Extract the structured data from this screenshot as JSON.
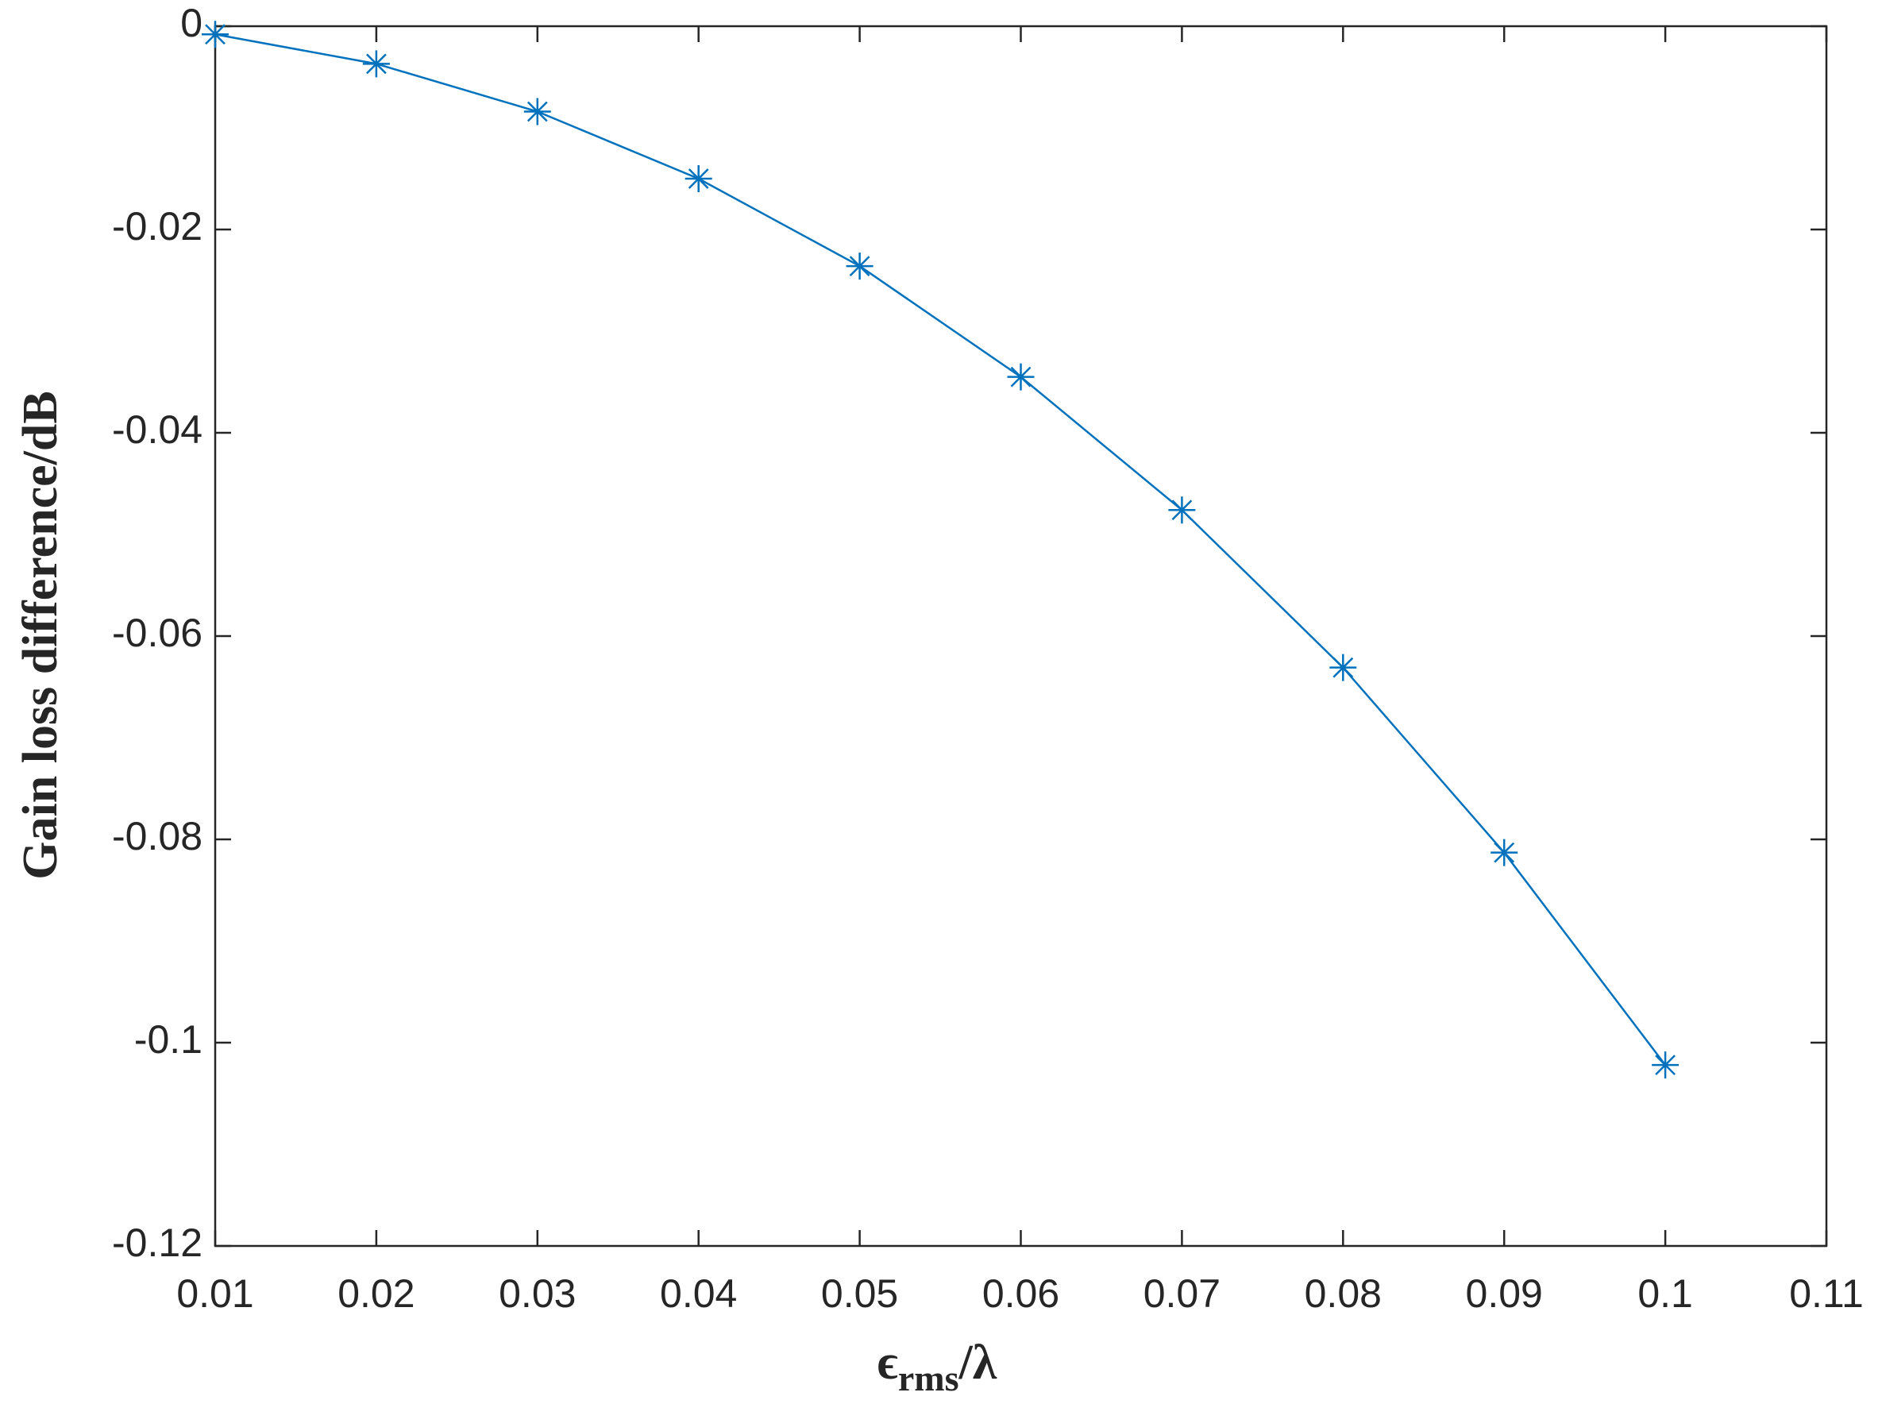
{
  "chart_data": {
    "type": "line",
    "xlabel": [
      "ϵ",
      "rms",
      "/λ"
    ],
    "ylabel": "Gain loss difference/dB",
    "x": [
      0.01,
      0.02,
      0.03,
      0.04,
      0.05,
      0.06,
      0.07,
      0.08,
      0.09,
      0.1
    ],
    "values": [
      -0.0008,
      -0.0037,
      -0.0084,
      -0.015,
      -0.0236,
      -0.0345,
      -0.0476,
      -0.0631,
      -0.0813,
      -0.1022
    ],
    "color": "#0072bd",
    "marker": "asterisk",
    "xlim": [
      0.01,
      0.11
    ],
    "xticks": [
      0.01,
      0.02,
      0.03,
      0.04,
      0.05,
      0.06,
      0.07,
      0.08,
      0.09,
      0.1,
      0.11
    ],
    "ylim": [
      -0.12,
      0
    ],
    "yticks": [
      0,
      -0.02,
      -0.04,
      -0.06,
      -0.08,
      -0.1,
      -0.12
    ],
    "grid": false
  }
}
